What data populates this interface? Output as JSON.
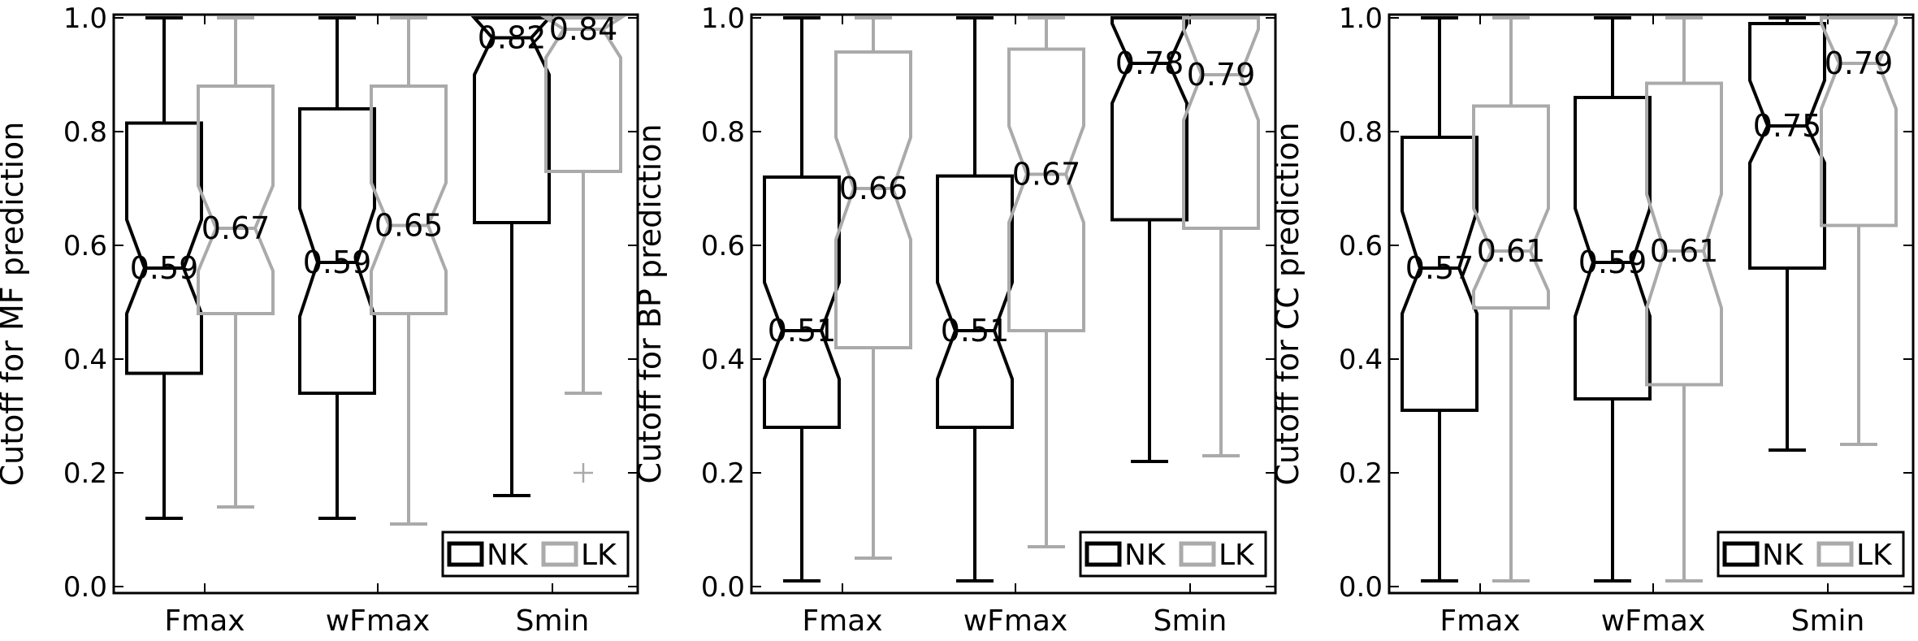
{
  "chart_data": [
    {
      "type": "boxplot",
      "ylabel": "Cutoff for MF prediction",
      "ylim": [
        0,
        1
      ],
      "yticks": [
        "0.0",
        "0.2",
        "0.4",
        "0.6",
        "0.8",
        "1.0"
      ],
      "categories": [
        "Fmax",
        "wFmax",
        "Smin"
      ],
      "legend": {
        "position": "bottom-right",
        "entries": [
          "NK",
          "LK"
        ]
      },
      "series": [
        {
          "name": "NK",
          "color": "#000000",
          "boxes": [
            {
              "whisker_low": 0.12,
              "q1": 0.375,
              "median": 0.56,
              "q3": 0.815,
              "whisker_high": 1.0,
              "notch_low": 0.48,
              "notch_high": 0.645,
              "label": "0.59",
              "outliers": []
            },
            {
              "whisker_low": 0.12,
              "q1": 0.34,
              "median": 0.57,
              "q3": 0.84,
              "whisker_high": 1.0,
              "notch_low": 0.475,
              "notch_high": 0.665,
              "label": "0.59",
              "outliers": []
            },
            {
              "whisker_low": 0.16,
              "q1": 0.64,
              "median": 0.965,
              "q3": 1.0,
              "whisker_high": 1.0,
              "notch_low": 0.9,
              "notch_high": 1.0,
              "label": "0.82",
              "outliers": []
            }
          ]
        },
        {
          "name": "LK",
          "color": "#aaaaaa",
          "boxes": [
            {
              "whisker_low": 0.14,
              "q1": 0.48,
              "median": 0.63,
              "q3": 0.88,
              "whisker_high": 1.0,
              "notch_low": 0.555,
              "notch_high": 0.705,
              "label": "0.67",
              "outliers": []
            },
            {
              "whisker_low": 0.11,
              "q1": 0.48,
              "median": 0.635,
              "q3": 0.88,
              "whisker_high": 1.0,
              "notch_low": 0.555,
              "notch_high": 0.71,
              "label": "0.65",
              "outliers": []
            },
            {
              "whisker_low": 0.34,
              "q1": 0.73,
              "median": 0.98,
              "q3": 1.0,
              "whisker_high": 1.0,
              "notch_low": 0.93,
              "notch_high": 1.0,
              "label": "0.84",
              "outliers": [
                0.2
              ]
            }
          ]
        }
      ]
    },
    {
      "type": "boxplot",
      "ylabel": "Cutoff for BP prediction",
      "ylim": [
        0,
        1
      ],
      "yticks": [
        "0.0",
        "0.2",
        "0.4",
        "0.6",
        "0.8",
        "1.0"
      ],
      "categories": [
        "Fmax",
        "wFmax",
        "Smin"
      ],
      "legend": {
        "position": "bottom-right",
        "entries": [
          "NK",
          "LK"
        ]
      },
      "series": [
        {
          "name": "NK",
          "color": "#000000",
          "boxes": [
            {
              "whisker_low": 0.01,
              "q1": 0.28,
              "median": 0.45,
              "q3": 0.72,
              "whisker_high": 1.0,
              "notch_low": 0.365,
              "notch_high": 0.535,
              "label": "0.51",
              "outliers": []
            },
            {
              "whisker_low": 0.01,
              "q1": 0.28,
              "median": 0.45,
              "q3": 0.722,
              "whisker_high": 1.0,
              "notch_low": 0.365,
              "notch_high": 0.535,
              "label": "0.51",
              "outliers": []
            },
            {
              "whisker_low": 0.22,
              "q1": 0.645,
              "median": 0.92,
              "q3": 1.0,
              "whisker_high": 1.0,
              "notch_low": 0.85,
              "notch_high": 0.99,
              "label": "0.78",
              "outliers": []
            }
          ]
        },
        {
          "name": "LK",
          "color": "#aaaaaa",
          "boxes": [
            {
              "whisker_low": 0.05,
              "q1": 0.42,
              "median": 0.7,
              "q3": 0.94,
              "whisker_high": 1.0,
              "notch_low": 0.61,
              "notch_high": 0.79,
              "label": "0.66",
              "outliers": []
            },
            {
              "whisker_low": 0.07,
              "q1": 0.45,
              "median": 0.725,
              "q3": 0.945,
              "whisker_high": 1.0,
              "notch_low": 0.64,
              "notch_high": 0.81,
              "label": "0.67",
              "outliers": []
            },
            {
              "whisker_low": 0.23,
              "q1": 0.63,
              "median": 0.9,
              "q3": 1.0,
              "whisker_high": 1.0,
              "notch_low": 0.82,
              "notch_high": 0.98,
              "label": "0.79",
              "outliers": []
            }
          ]
        }
      ]
    },
    {
      "type": "boxplot",
      "ylabel": "Cutoff for CC prediction",
      "ylim": [
        0,
        1
      ],
      "yticks": [
        "0.0",
        "0.2",
        "0.4",
        "0.6",
        "0.8",
        "1.0"
      ],
      "categories": [
        "Fmax",
        "wFmax",
        "Smin"
      ],
      "legend": {
        "position": "bottom-right",
        "entries": [
          "NK",
          "LK"
        ]
      },
      "series": [
        {
          "name": "NK",
          "color": "#000000",
          "boxes": [
            {
              "whisker_low": 0.01,
              "q1": 0.31,
              "median": 0.56,
              "q3": 0.79,
              "whisker_high": 1.0,
              "notch_low": 0.48,
              "notch_high": 0.66,
              "label": "0.57",
              "outliers": []
            },
            {
              "whisker_low": 0.01,
              "q1": 0.33,
              "median": 0.57,
              "q3": 0.86,
              "whisker_high": 1.0,
              "notch_low": 0.475,
              "notch_high": 0.665,
              "label": "0.59",
              "outliers": []
            },
            {
              "whisker_low": 0.24,
              "q1": 0.56,
              "median": 0.81,
              "q3": 0.99,
              "whisker_high": 1.0,
              "notch_low": 0.745,
              "notch_high": 0.89,
              "label": "0.75",
              "outliers": []
            }
          ]
        },
        {
          "name": "LK",
          "color": "#aaaaaa",
          "boxes": [
            {
              "whisker_low": 0.01,
              "q1": 0.49,
              "median": 0.59,
              "q3": 0.845,
              "whisker_high": 1.0,
              "notch_low": 0.52,
              "notch_high": 0.665,
              "label": "0.61",
              "outliers": []
            },
            {
              "whisker_low": 0.01,
              "q1": 0.355,
              "median": 0.59,
              "q3": 0.885,
              "whisker_high": 1.0,
              "notch_low": 0.49,
              "notch_high": 0.69,
              "label": "0.61",
              "outliers": []
            },
            {
              "whisker_low": 0.25,
              "q1": 0.635,
              "median": 0.92,
              "q3": 1.0,
              "whisker_high": 1.0,
              "notch_low": 0.84,
              "notch_high": 0.99,
              "label": "0.79",
              "outliers": []
            }
          ]
        }
      ]
    }
  ]
}
